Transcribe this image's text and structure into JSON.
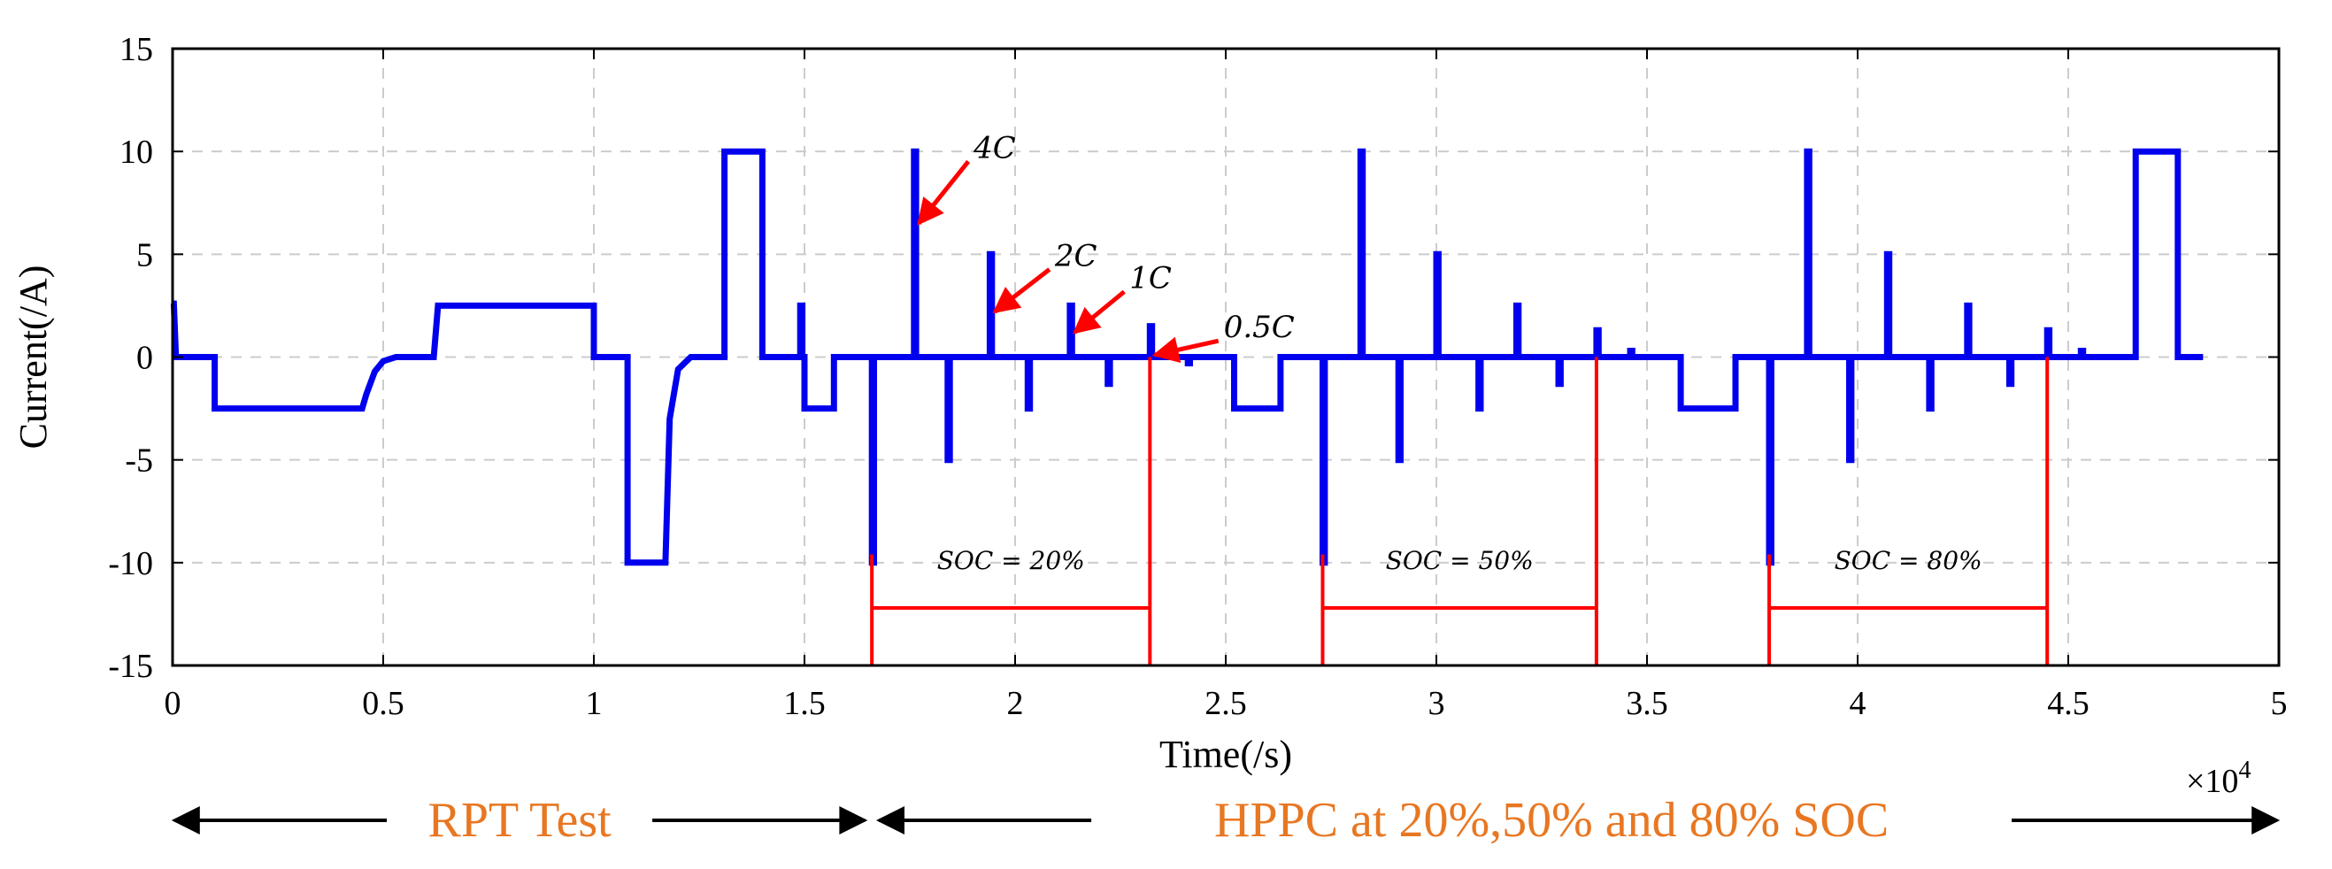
{
  "chart_data": {
    "type": "line",
    "title": "",
    "xlabel": "Time(/s)",
    "ylabel": "Current(/A)",
    "x_multiplier": "×10",
    "x_multiplier_exp": "4",
    "xlim": [
      0,
      5
    ],
    "ylim": [
      -15,
      15
    ],
    "xticks": [
      0,
      0.5,
      1,
      1.5,
      2,
      2.5,
      3,
      3.5,
      4,
      4.5,
      5
    ],
    "xtick_labels": [
      "0",
      "0.5",
      "1",
      "1.5",
      "2",
      "2.5",
      "3",
      "3.5",
      "4",
      "4.5",
      "5"
    ],
    "yticks": [
      15,
      10,
      5,
      0,
      -5,
      -10,
      -15
    ],
    "ytick_labels": [
      "15",
      "10",
      "5",
      "0",
      "-5",
      "-10",
      "-15"
    ],
    "grid": true,
    "series": [
      {
        "name": "Current",
        "color": "#0000ee",
        "x": [
          0,
          0.003,
          0.008,
          0.013,
          0.015,
          0.1,
          0.1,
          0.45,
          0.46,
          0.48,
          0.5,
          0.53,
          0.57,
          0.62,
          0.62,
          0.63,
          0.63,
          1.0,
          1.0,
          1.08,
          1.08,
          1.17,
          1.18,
          1.2,
          1.23,
          1.25,
          1.3,
          1.31,
          1.31,
          1.4,
          1.4,
          1.49,
          1.49,
          1.495,
          1.495,
          1.5,
          1.5,
          1.57,
          1.57,
          1.66,
          1.66,
          1.665,
          1.665,
          1.76,
          1.76,
          1.765,
          1.765,
          1.84,
          1.84,
          1.845,
          1.845,
          1.94,
          1.94,
          1.945,
          1.945,
          2.03,
          2.03,
          2.035,
          2.035,
          2.13,
          2.13,
          2.135,
          2.135,
          2.22,
          2.22,
          2.225,
          2.225,
          2.32,
          2.32,
          2.325,
          2.325,
          2.41,
          2.41,
          2.415,
          2.415,
          2.52,
          2.52,
          2.63,
          2.63,
          2.73,
          2.73,
          2.735,
          2.735,
          2.82,
          2.82,
          2.825,
          2.825,
          2.91,
          2.91,
          2.915,
          2.915,
          3.0,
          3.0,
          3.005,
          3.005,
          3.1,
          3.1,
          3.105,
          3.105,
          3.19,
          3.19,
          3.195,
          3.195,
          3.29,
          3.29,
          3.295,
          3.295,
          3.38,
          3.38,
          3.385,
          3.385,
          3.46,
          3.46,
          3.465,
          3.465,
          3.58,
          3.58,
          3.71,
          3.71,
          3.79,
          3.79,
          3.795,
          3.795,
          3.88,
          3.88,
          3.885,
          3.885,
          3.98,
          3.98,
          3.985,
          3.985,
          4.07,
          4.07,
          4.075,
          4.075,
          4.17,
          4.17,
          4.175,
          4.175,
          4.26,
          4.26,
          4.265,
          4.265,
          4.36,
          4.36,
          4.365,
          4.365,
          4.45,
          4.45,
          4.455,
          4.455,
          4.53,
          4.53,
          4.535,
          4.535,
          4.66,
          4.66,
          4.76,
          4.76,
          4.82
        ],
        "y": [
          2.6,
          2.6,
          0,
          0,
          0,
          0,
          -2.5,
          -2.5,
          -1.8,
          -0.7,
          -0.2,
          0,
          0,
          0,
          0,
          2.5,
          2.5,
          2.5,
          0,
          0,
          -10,
          -10,
          -3,
          -0.6,
          0,
          0,
          0,
          0,
          10,
          10,
          0,
          0,
          2.5,
          2.5,
          0,
          0,
          -2.5,
          -2.5,
          0,
          0,
          -10,
          -10,
          0,
          0,
          10,
          10,
          0,
          0,
          -5,
          -5,
          0,
          0,
          5,
          5,
          0,
          0,
          -2.5,
          -2.5,
          0,
          0,
          2.5,
          2.5,
          0,
          0,
          -1.3,
          -1.3,
          0,
          0,
          1.5,
          1.5,
          0,
          0,
          -0.3,
          -0.3,
          0,
          0,
          -2.5,
          -2.5,
          0,
          0,
          -10,
          -10,
          0,
          0,
          10,
          10,
          0,
          0,
          -5,
          -5,
          0,
          0,
          5,
          5,
          0,
          0,
          -2.5,
          -2.5,
          0,
          0,
          2.5,
          2.5,
          0,
          0,
          -1.3,
          -1.3,
          0,
          0,
          1.3,
          1.3,
          0,
          0,
          0.3,
          0.3,
          0,
          0,
          -2.5,
          -2.5,
          0,
          0,
          -10,
          -10,
          0,
          0,
          10,
          10,
          0,
          0,
          -5,
          -5,
          0,
          0,
          5,
          5,
          0,
          0,
          -2.5,
          -2.5,
          0,
          0,
          2.5,
          2.5,
          0,
          0,
          -1.3,
          -1.3,
          0,
          0,
          1.3,
          1.3,
          0,
          0,
          0.3,
          0.3,
          0,
          0,
          10,
          10,
          0,
          0
        ]
      }
    ],
    "pulse_annotations": [
      {
        "label": "4C",
        "target": [
          1.765,
          6.5
        ]
      },
      {
        "label": "2C",
        "target": [
          1.945,
          2.2
        ]
      },
      {
        "label": "1C",
        "target": [
          2.135,
          1.2
        ]
      },
      {
        "label": "0.5C",
        "target": [
          2.325,
          0.1
        ]
      }
    ],
    "soc_windows": [
      {
        "label": "SOC = 20%",
        "x_start": 1.66,
        "x_end": 2.32
      },
      {
        "label": "SOC = 50%",
        "x_start": 2.73,
        "x_end": 3.38
      },
      {
        "label": "SOC = 80%",
        "x_start": 3.79,
        "x_end": 4.45
      }
    ],
    "phases": [
      {
        "label": "RPT Test",
        "x_start": 0,
        "x_end": 1.66
      },
      {
        "label": "HPPC at 20%,50% and 80% SOC",
        "x_start": 1.66,
        "x_end": 5
      }
    ],
    "colors": {
      "line": "#0000ee",
      "annotation": "#ff0000",
      "phase_text": "#e87722",
      "grid": "#cccccc"
    }
  }
}
